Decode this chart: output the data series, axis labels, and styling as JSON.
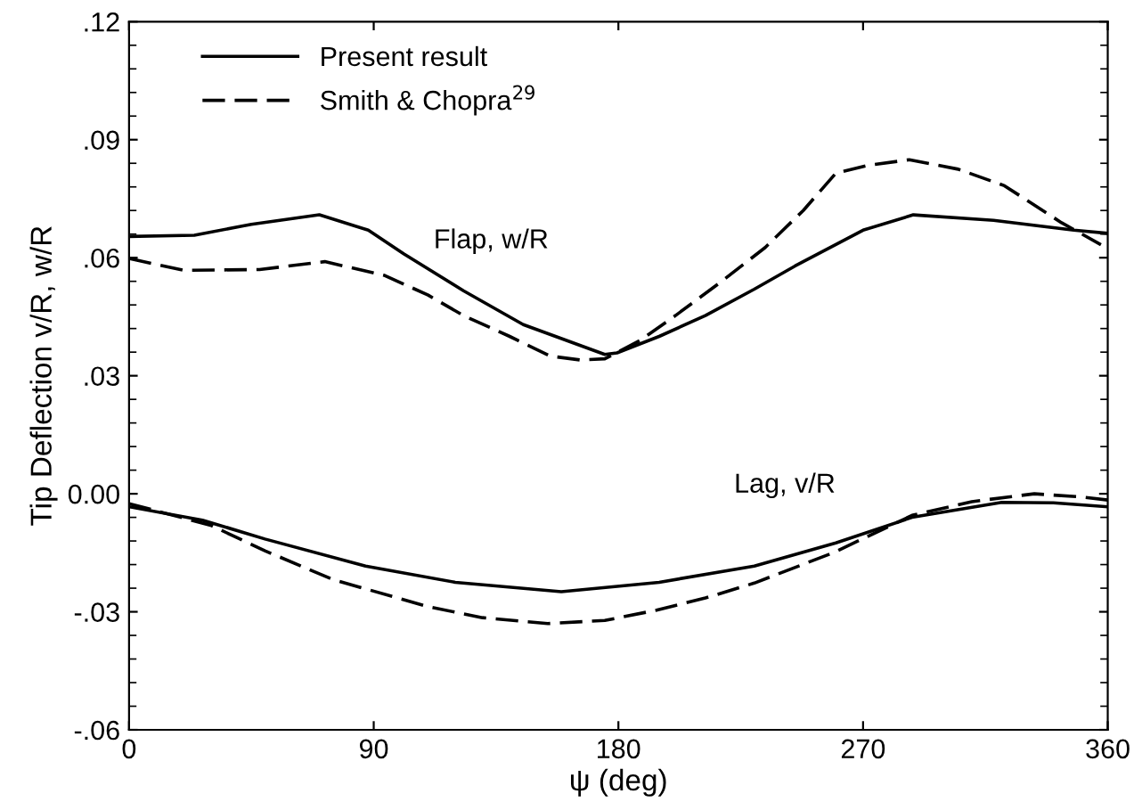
{
  "chart_data": {
    "type": "line",
    "xlabel": "ψ (deg)",
    "ylabel": "Tip Deflection v/R, w/R",
    "xlim": [
      0,
      360
    ],
    "ylim": [
      -0.06,
      0.12
    ],
    "xticks": [
      0,
      90,
      180,
      270,
      360
    ],
    "yticks": [
      {
        "value": -0.06,
        "label": "-.06"
      },
      {
        "value": -0.03,
        "label": "-.03"
      },
      {
        "value": 0,
        "label": "0.00"
      },
      {
        "value": 0.03,
        "label": ".03"
      },
      {
        "value": 0.06,
        "label": ".06"
      },
      {
        "value": 0.09,
        "label": ".09"
      },
      {
        "value": 0.12,
        "label": ".12"
      }
    ],
    "grid": false,
    "legend": "top left",
    "marker": "none",
    "series": [
      {
        "name": "Present result",
        "color": "#000000",
        "line_style": "solid",
        "x": [
          0,
          24,
          45,
          70,
          88,
          101,
          123,
          145,
          175,
          179.5,
          195,
          212,
          230,
          245,
          270,
          288.5,
          318,
          347.5,
          360
        ],
        "values": [
          0.0654,
          0.0657,
          0.0685,
          0.0709,
          0.067,
          0.061,
          0.0516,
          0.043,
          0.0354,
          0.0358,
          0.04,
          0.0453,
          0.052,
          0.0579,
          0.067,
          0.0709,
          0.0695,
          0.067,
          0.0662
        ]
      },
      {
        "name": "Smith & Chopra$^{29}$",
        "color": "#000000",
        "line_style": "dashed",
        "x": [
          0,
          20,
          48,
          72,
          94,
          110,
          123,
          140,
          155,
          166,
          175,
          188,
          201,
          218,
          234,
          248,
          260,
          272,
          287,
          305,
          322,
          343,
          357.5
        ],
        "values": [
          0.0598,
          0.0568,
          0.057,
          0.059,
          0.0555,
          0.0505,
          0.0453,
          0.04,
          0.035,
          0.034,
          0.0343,
          0.039,
          0.0453,
          0.054,
          0.0626,
          0.072,
          0.0815,
          0.0835,
          0.0849,
          0.0825,
          0.0783,
          0.0689,
          0.0633
        ]
      },
      {
        "color": "#000000",
        "line_style": "solid",
        "x": [
          0,
          27,
          50,
          87,
          120,
          159,
          195,
          230,
          260,
          288,
          321,
          340,
          360
        ],
        "values": [
          -0.0033,
          -0.0067,
          -0.0115,
          -0.0184,
          -0.0225,
          -0.0249,
          -0.0225,
          -0.0184,
          -0.0125,
          -0.006,
          -0.0022,
          -0.0023,
          -0.0033
        ]
      },
      {
        "color": "#000000",
        "line_style": "dashed",
        "x": [
          0,
          30,
          50,
          75,
          110,
          130,
          154,
          175,
          194,
          212,
          230,
          259,
          288,
          310,
          333,
          350,
          360
        ],
        "values": [
          -0.0025,
          -0.008,
          -0.0145,
          -0.0218,
          -0.0287,
          -0.0315,
          -0.033,
          -0.0322,
          -0.0296,
          -0.0265,
          -0.0227,
          -0.015,
          -0.0055,
          -0.002,
          0.0,
          -0.0008,
          -0.0016
        ]
      }
    ],
    "annotations": [
      "Flap, w/R",
      "Lag, v/R"
    ]
  }
}
